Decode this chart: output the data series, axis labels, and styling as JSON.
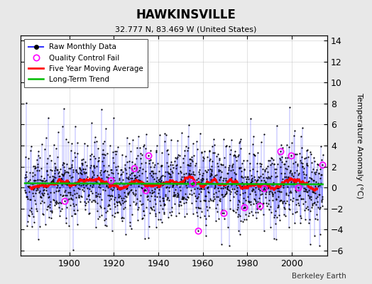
{
  "title": "HAWKINSVILLE",
  "subtitle": "32.777 N, 83.469 W (United States)",
  "ylabel_right": "Temperature Anomaly (°C)",
  "attribution": "Berkeley Earth",
  "year_start": 1880,
  "year_end": 2014,
  "ylim": [
    -6.5,
    14.5
  ],
  "yticks": [
    -6,
    -4,
    -2,
    0,
    2,
    4,
    6,
    8,
    10,
    12,
    14
  ],
  "xticks": [
    1900,
    1920,
    1940,
    1960,
    1980,
    2000
  ],
  "raw_color": "#3333ff",
  "marker_color": "#000000",
  "qc_color": "#ff00ff",
  "moving_avg_color": "#ff0000",
  "trend_color": "#00bb00",
  "background_color": "#e8e8e8",
  "plot_bg_color": "#ffffff",
  "seed": 42
}
